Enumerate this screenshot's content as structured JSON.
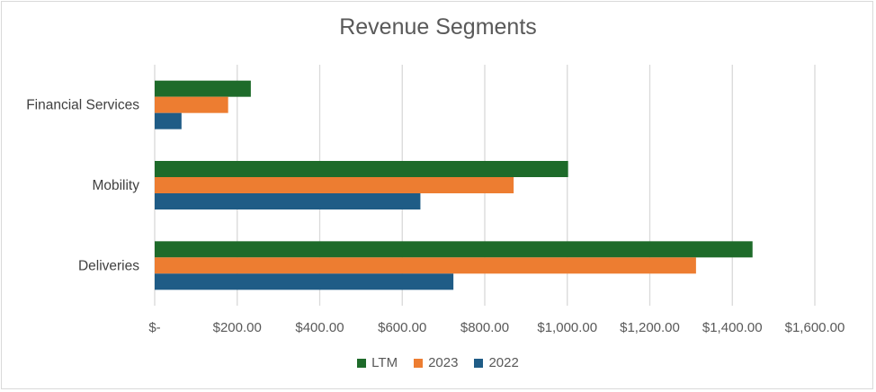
{
  "chart_data": {
    "type": "bar",
    "orientation": "horizontal",
    "title": "Revenue Segments",
    "categories": [
      "Financial Services",
      "Mobility",
      "Deliveries"
    ],
    "series": [
      {
        "name": "LTM",
        "color": "#1e6b2a",
        "values": [
          233,
          1002,
          1449
        ]
      },
      {
        "name": "2023",
        "color": "#ed7d31",
        "values": [
          178,
          870,
          1312
        ]
      },
      {
        "name": "2022",
        "color": "#1f5c86",
        "values": [
          65,
          644,
          724
        ]
      }
    ],
    "xlim": [
      0,
      1600
    ],
    "x_ticks": [
      0,
      200,
      400,
      600,
      800,
      1000,
      1200,
      1400,
      1600
    ],
    "x_tick_labels": [
      "$-",
      "$200.00",
      "$400.00",
      "$600.00",
      "$800.00",
      "$1,000.00",
      "$1,200.00",
      "$1,400.00",
      "$1,600.00"
    ],
    "grid": "vertical",
    "legend": "bottom"
  }
}
